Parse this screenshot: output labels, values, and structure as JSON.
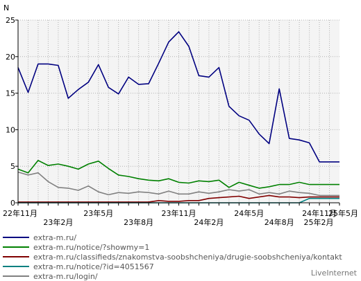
{
  "chart_data": {
    "type": "line",
    "ylabel": "N",
    "ylim": [
      0,
      25
    ],
    "yticks": [
      0,
      5,
      10,
      15,
      20,
      25
    ],
    "grid": true,
    "n_points": 33,
    "xticks": [
      {
        "i": 0,
        "label": "22年11月",
        "row": 1
      },
      {
        "i": 4,
        "label": "23年2月",
        "row": 2
      },
      {
        "i": 8,
        "label": "23年5月",
        "row": 1
      },
      {
        "i": 12,
        "label": "23年8月",
        "row": 2
      },
      {
        "i": 16,
        "label": "23年11月",
        "row": 1
      },
      {
        "i": 19,
        "label": "24年2月",
        "row": 2
      },
      {
        "i": 23,
        "label": "24年5月",
        "row": 1
      },
      {
        "i": 26,
        "label": "24年8月",
        "row": 2
      },
      {
        "i": 30,
        "label": "24年11月",
        "row": 1
      },
      {
        "i": 32,
        "label": "25年2月",
        "row": 2
      },
      {
        "i": 32,
        "label": "25年5月",
        "row": 1
      }
    ],
    "series": [
      {
        "name": "extra-m.ru/",
        "color": "#000080",
        "values": [
          18.5,
          15.1,
          19.0,
          19.0,
          18.8,
          14.3,
          15.5,
          16.5,
          18.9,
          15.8,
          14.9,
          17.2,
          16.2,
          16.3,
          19.1,
          22.0,
          23.4,
          21.4,
          17.4,
          17.2,
          18.5,
          13.2,
          11.9,
          11.3,
          9.4,
          8.1,
          15.6,
          8.8,
          8.6,
          8.2,
          5.6,
          5.6,
          5.6
        ]
      },
      {
        "name": "extra-m.ru/notice/?showmy=1",
        "color": "#008000",
        "values": [
          4.6,
          4.1,
          5.8,
          5.1,
          5.3,
          5.0,
          4.6,
          5.3,
          5.7,
          4.7,
          3.8,
          3.6,
          3.3,
          3.1,
          3.0,
          3.3,
          2.8,
          2.7,
          3.0,
          2.9,
          3.1,
          2.1,
          2.8,
          2.4,
          2.0,
          2.2,
          2.5,
          2.5,
          2.8,
          2.5,
          2.5,
          2.5,
          2.5
        ]
      },
      {
        "name": "extra-m.ru/classifieds/znakomstva-soobshcheniya/drugie-soobshcheniya/kontakt",
        "color": "#800000",
        "values": [
          0.1,
          0.1,
          0.1,
          0.1,
          0.1,
          0.1,
          0.1,
          0.1,
          0.1,
          0.1,
          0.1,
          0.1,
          0.1,
          0.1,
          0.3,
          0.2,
          0.2,
          0.3,
          0.3,
          0.6,
          0.7,
          0.8,
          0.9,
          0.6,
          0.8,
          1.0,
          0.8,
          0.8,
          0.7,
          0.8,
          0.8,
          0.8,
          0.8
        ]
      },
      {
        "name": "extra-m.ru/notice/?id=4051567",
        "color": "#008080",
        "values": [
          0.0,
          0.0,
          0.0,
          0.0,
          0.0,
          0.0,
          0.0,
          0.0,
          0.0,
          0.0,
          0.0,
          0.0,
          0.0,
          0.0,
          0.0,
          0.0,
          0.0,
          0.0,
          0.0,
          0.0,
          0.0,
          0.0,
          0.0,
          0.0,
          0.0,
          0.0,
          0.0,
          0.0,
          0.0,
          0.6,
          0.6,
          0.6,
          0.6
        ]
      },
      {
        "name": "extra-m.ru/login/",
        "color": "#808080",
        "values": [
          4.2,
          3.8,
          4.1,
          2.9,
          2.1,
          2.0,
          1.7,
          2.3,
          1.5,
          1.1,
          1.4,
          1.3,
          1.5,
          1.4,
          1.2,
          1.6,
          1.2,
          1.2,
          1.5,
          1.3,
          1.5,
          1.8,
          1.6,
          1.8,
          1.2,
          1.4,
          1.2,
          1.6,
          1.4,
          1.3,
          1.0,
          1.0,
          1.0
        ]
      }
    ]
  },
  "branding": {
    "text": "LiveInternet"
  }
}
